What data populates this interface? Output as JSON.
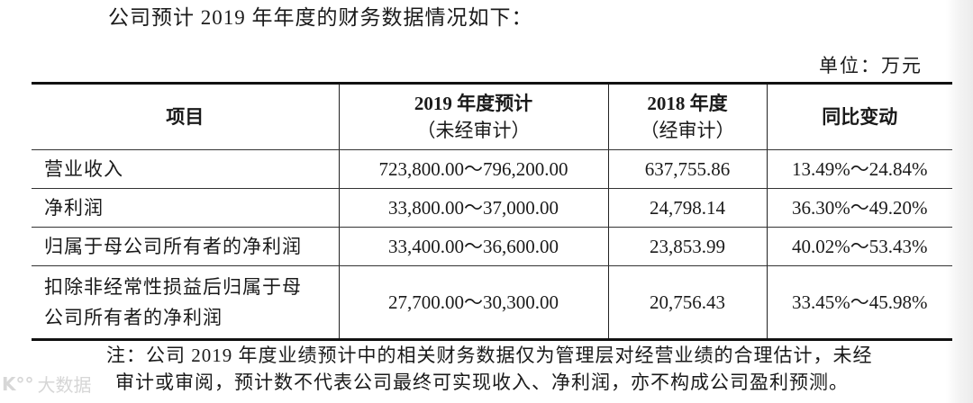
{
  "intro": "公司预计 2019 年年度的财务数据情况如下：",
  "unit_label": "单位：万元",
  "table": {
    "headers": [
      {
        "main": "项目",
        "sub": ""
      },
      {
        "main": "2019 年度预计",
        "sub": "（未经审计）"
      },
      {
        "main": "2018 年度",
        "sub": "（经审计）"
      },
      {
        "main": "同比变动",
        "sub": ""
      }
    ],
    "rows": [
      {
        "item": "营业收入",
        "forecast_2019": "723,800.00～796,200.00",
        "actual_2018": "637,755.86",
        "yoy_change": "13.49%～24.84%"
      },
      {
        "item": "净利润",
        "forecast_2019": "33,800.00～37,000.00",
        "actual_2018": "24,798.14",
        "yoy_change": "36.30%～49.20%"
      },
      {
        "item": "归属于母公司所有者的净利润",
        "forecast_2019": "33,400.00～36,600.00",
        "actual_2018": "23,853.99",
        "yoy_change": "40.02%～53.43%"
      },
      {
        "item_line1": "扣除非经常性损益后归属于母",
        "item_line2": "公司所有者的净利润",
        "forecast_2019": "27,700.00～30,300.00",
        "actual_2018": "20,756.43",
        "yoy_change": "33.45%～45.98%"
      }
    ]
  },
  "note": {
    "line1": "注：公司 2019 年度业绩预计中的相关财务数据仅为管理层对经营业绩的合理估计，未经",
    "line2": "审计或审阅，预计数不代表公司最终可实现收入、净利润，亦不构成公司盈利预测。"
  },
  "watermark": {
    "logo": "K°°",
    "text": "大数据"
  }
}
